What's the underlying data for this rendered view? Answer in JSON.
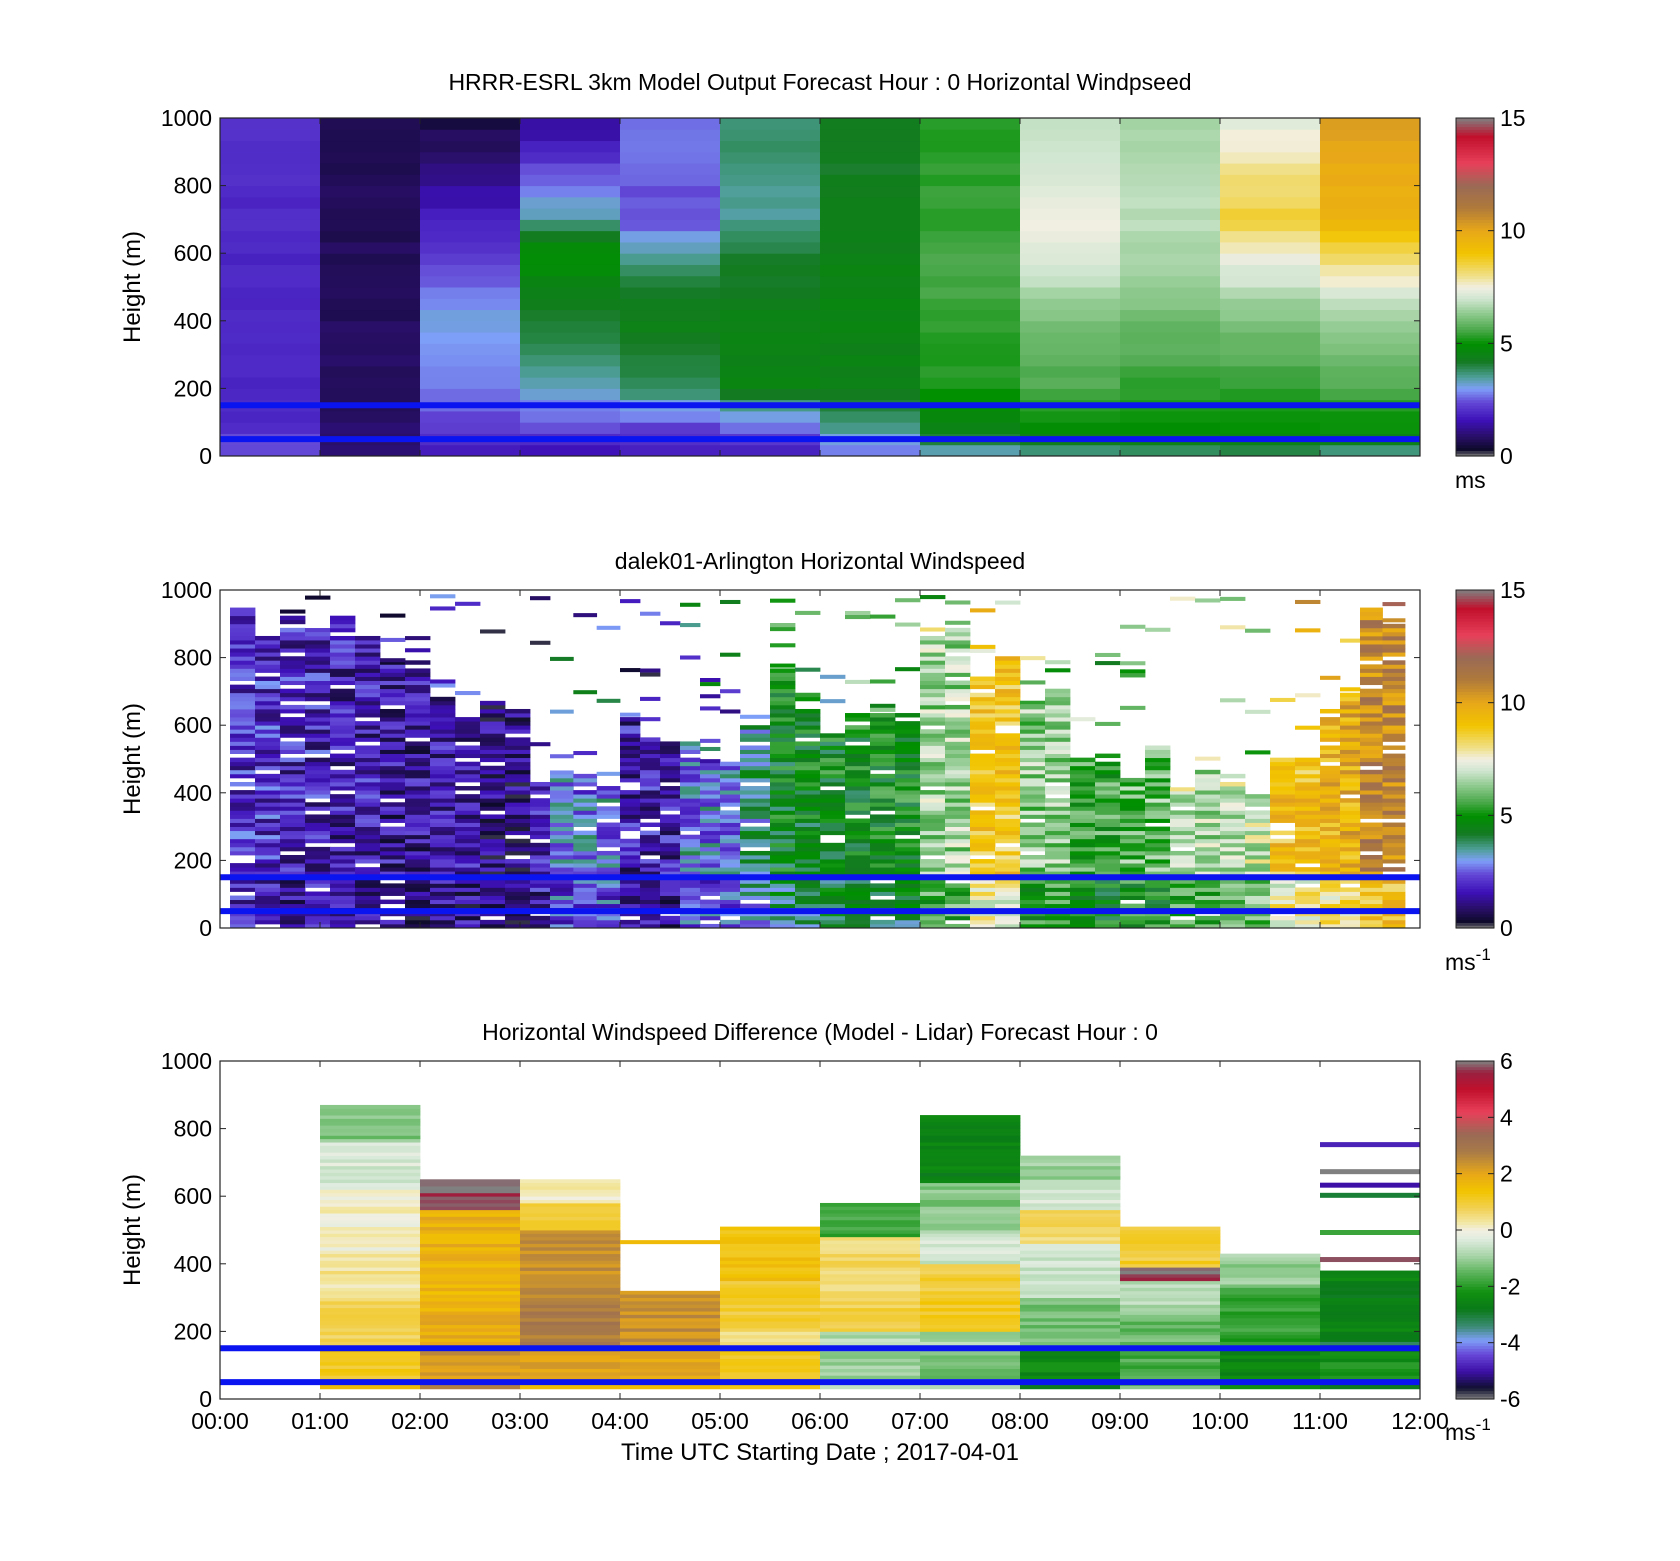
{
  "figure": {
    "xlabel": "Time UTC  Starting Date ; 2017-04-01",
    "x_ticks": [
      "00:00",
      "01:00",
      "02:00",
      "03:00",
      "04:00",
      "05:00",
      "06:00",
      "07:00",
      "08:00",
      "09:00",
      "10:00",
      "11:00",
      "12:00"
    ],
    "y_ticks": [
      "0",
      "200",
      "400",
      "600",
      "800",
      "1000"
    ],
    "ylabel": "Height (m)"
  },
  "chart_data": [
    {
      "type": "heatmap",
      "title": "HRRR-ESRL 3km Model Output   Forecast Hour : 0 Horizontal Windpseed",
      "xlabel": "",
      "ylabel": "Height (m)",
      "xlim": [
        0,
        12
      ],
      "ylim": [
        0,
        1000
      ],
      "colorbar": {
        "ticks": [
          "0",
          "5",
          "10",
          "15"
        ],
        "range": [
          0,
          15
        ],
        "unit": "ms",
        "unit_sup": ""
      },
      "reference_lines_m": [
        50,
        150
      ],
      "hour_columns": [
        [
          [
            30,
            2.5
          ],
          [
            60,
            2.2
          ],
          [
            90,
            2.0
          ],
          [
            200,
            1.9
          ],
          [
            1000,
            2.0
          ]
        ],
        [
          [
            30,
            1.0
          ],
          [
            60,
            0.9
          ],
          [
            200,
            0.8
          ],
          [
            1000,
            0.7
          ]
        ],
        [
          [
            30,
            1.8
          ],
          [
            60,
            2.1
          ],
          [
            160,
            2.6
          ],
          [
            400,
            3.1
          ],
          [
            600,
            2.2
          ],
          [
            1000,
            0.5
          ]
        ],
        [
          [
            30,
            1.6
          ],
          [
            60,
            2.3
          ],
          [
            200,
            3.2
          ],
          [
            400,
            4.2
          ],
          [
            600,
            5.0
          ],
          [
            700,
            3.5
          ],
          [
            1000,
            1.2
          ]
        ],
        [
          [
            30,
            1.8
          ],
          [
            60,
            2.0
          ],
          [
            200,
            3.8
          ],
          [
            400,
            4.5
          ],
          [
            600,
            3.6
          ],
          [
            700,
            2.4
          ],
          [
            1000,
            2.7
          ]
        ],
        [
          [
            30,
            1.9
          ],
          [
            60,
            2.2
          ],
          [
            200,
            4.5
          ],
          [
            400,
            4.5
          ],
          [
            600,
            4.0
          ],
          [
            700,
            3.5
          ],
          [
            1000,
            3.8
          ]
        ],
        [
          [
            30,
            2.8
          ],
          [
            60,
            3.4
          ],
          [
            200,
            4.4
          ],
          [
            400,
            4.6
          ],
          [
            600,
            4.5
          ],
          [
            700,
            4.3
          ],
          [
            1000,
            4.2
          ]
        ],
        [
          [
            30,
            3.5
          ],
          [
            60,
            4.5
          ],
          [
            200,
            5.2
          ],
          [
            400,
            5.4
          ],
          [
            600,
            5.6
          ],
          [
            700,
            5.4
          ],
          [
            1000,
            5.3
          ]
        ],
        [
          [
            30,
            3.8
          ],
          [
            60,
            4.8
          ],
          [
            200,
            5.6
          ],
          [
            400,
            6.2
          ],
          [
            600,
            7.2
          ],
          [
            700,
            7.4
          ],
          [
            1000,
            6.8
          ]
        ],
        [
          [
            30,
            3.8
          ],
          [
            60,
            4.8
          ],
          [
            200,
            5.3
          ],
          [
            400,
            6.0
          ],
          [
            600,
            6.6
          ],
          [
            700,
            6.8
          ],
          [
            1000,
            6.5
          ]
        ],
        [
          [
            30,
            3.9
          ],
          [
            60,
            4.9
          ],
          [
            200,
            5.4
          ],
          [
            400,
            6.1
          ],
          [
            600,
            7.6
          ],
          [
            700,
            8.6
          ],
          [
            1000,
            7.3
          ]
        ],
        [
          [
            30,
            3.6
          ],
          [
            60,
            4.9
          ],
          [
            200,
            5.6
          ],
          [
            400,
            6.4
          ],
          [
            600,
            8.4
          ],
          [
            700,
            9.6
          ],
          [
            1000,
            10.2
          ]
        ]
      ]
    },
    {
      "type": "heatmap",
      "title": "dalek01-Arlington  Horizontal Windspeed",
      "xlabel": "",
      "ylabel": "Height (m)",
      "xlim": [
        0,
        12
      ],
      "ylim": [
        0,
        1000
      ],
      "colorbar": {
        "ticks": [
          "0",
          "5",
          "10",
          "15"
        ],
        "range": [
          0,
          15
        ],
        "unit": "ms",
        "unit_sup": "-1"
      },
      "reference_lines_m": [
        50,
        150
      ],
      "segments": [
        {
          "t0": 0.1,
          "t1": 0.6,
          "ws": 2.0,
          "top": 900
        },
        {
          "t0": 0.6,
          "t1": 1.1,
          "ws": 1.8,
          "top": 860
        },
        {
          "t0": 1.1,
          "t1": 1.6,
          "ws": 1.6,
          "top": 880
        },
        {
          "t0": 1.6,
          "t1": 2.1,
          "ws": 1.4,
          "top": 820
        },
        {
          "t0": 2.1,
          "t1": 2.6,
          "ws": 1.5,
          "top": 660
        },
        {
          "t0": 2.6,
          "t1": 3.1,
          "ws": 1.1,
          "top": 640
        },
        {
          "t0": 3.1,
          "t1": 3.3,
          "ws": 1.8,
          "top": 420
        },
        {
          "t0": 3.3,
          "t1": 4.0,
          "ws": 2.8,
          "top": 430
        },
        {
          "t0": 4.0,
          "t1": 4.6,
          "ws": 1.6,
          "top": 560
        },
        {
          "t0": 4.6,
          "t1": 5.2,
          "ws": 2.9,
          "top": 520
        },
        {
          "t0": 5.2,
          "t1": 5.5,
          "ws": 3.6,
          "top": 560
        },
        {
          "t0": 5.5,
          "t1": 6.0,
          "ws": 4.6,
          "top": 720
        },
        {
          "t0": 6.0,
          "t1": 6.5,
          "ws": 4.8,
          "top": 600
        },
        {
          "t0": 6.5,
          "t1": 7.0,
          "ws": 4.9,
          "top": 660
        },
        {
          "t0": 7.0,
          "t1": 7.5,
          "ws": 6.5,
          "top": 860
        },
        {
          "t0": 7.5,
          "t1": 8.0,
          "ws": 8.9,
          "top": 800
        },
        {
          "t0": 8.0,
          "t1": 8.5,
          "ws": 6.3,
          "top": 660
        },
        {
          "t0": 8.5,
          "t1": 9.0,
          "ws": 5.4,
          "top": 520
        },
        {
          "t0": 9.0,
          "t1": 9.5,
          "ws": 5.9,
          "top": 500
        },
        {
          "t0": 9.5,
          "t1": 10.0,
          "ws": 6.6,
          "top": 460
        },
        {
          "t0": 10.0,
          "t1": 10.5,
          "ws": 7.0,
          "top": 430
        },
        {
          "t0": 10.5,
          "t1": 11.0,
          "ws": 9.1,
          "top": 520
        },
        {
          "t0": 11.0,
          "t1": 11.4,
          "ws": 9.6,
          "top": 640
        },
        {
          "t0": 11.4,
          "t1": 11.85,
          "ws": 10.8,
          "top": 880
        }
      ]
    },
    {
      "type": "heatmap",
      "title": "Horizontal Windspeed Difference (Model - Lidar) Forecast Hour : 0",
      "xlabel": "Time UTC  Starting Date ; 2017-04-01",
      "ylabel": "Height (m)",
      "xlim": [
        0,
        12
      ],
      "ylim": [
        0,
        1000
      ],
      "colorbar": {
        "ticks": [
          "6",
          "4",
          "2",
          "0",
          "-2",
          "-4",
          "-6"
        ],
        "range": [
          -6,
          6
        ],
        "unit": "ms",
        "unit_sup": "-1"
      },
      "reference_lines_m": [
        50,
        150
      ],
      "hour_blocks": [
        {
          "h": 1,
          "top": 870,
          "bands": [
            [
              870,
              -1.2
            ],
            [
              760,
              -0.4
            ],
            [
              620,
              0.1
            ],
            [
              430,
              0.4
            ],
            [
              300,
              0.8
            ],
            [
              150,
              1.2
            ],
            [
              60,
              1.6
            ]
          ]
        },
        {
          "h": 2,
          "top": 650,
          "bands": [
            [
              650,
              5.8
            ],
            [
              560,
              1.8
            ],
            [
              400,
              1.7
            ],
            [
              250,
              1.9
            ],
            [
              150,
              2.3
            ],
            [
              60,
              2.4
            ]
          ]
        },
        {
          "h": 3,
          "top": 650,
          "bands": [
            [
              650,
              0.2
            ],
            [
              580,
              1.0
            ],
            [
              500,
              2.4
            ],
            [
              300,
              2.8
            ],
            [
              150,
              2.2
            ],
            [
              60,
              1.6
            ]
          ]
        },
        {
          "h": 4,
          "top": 320,
          "bands": [
            [
              320,
              2.4
            ],
            [
              150,
              2.0
            ],
            [
              60,
              1.5
            ]
          ]
        },
        {
          "h": 5,
          "top": 510,
          "bands": [
            [
              510,
              1.4
            ],
            [
              350,
              1.0
            ],
            [
              200,
              0.4
            ],
            [
              150,
              1.2
            ],
            [
              60,
              1.5
            ]
          ]
        },
        {
          "h": 6,
          "top": 580,
          "bands": [
            [
              580,
              -1.8
            ],
            [
              480,
              0.6
            ],
            [
              300,
              0.9
            ],
            [
              200,
              -0.8
            ],
            [
              150,
              -1.0
            ],
            [
              60,
              -0.7
            ]
          ]
        },
        {
          "h": 7,
          "top": 840,
          "bands": [
            [
              840,
              -2.6
            ],
            [
              640,
              -1.2
            ],
            [
              500,
              -0.5
            ],
            [
              400,
              0.9
            ],
            [
              300,
              1.2
            ],
            [
              200,
              -0.9
            ],
            [
              150,
              -1.3
            ],
            [
              60,
              -1.0
            ]
          ]
        },
        {
          "h": 8,
          "top": 720,
          "bands": [
            [
              720,
              -1.0
            ],
            [
              650,
              -0.4
            ],
            [
              560,
              0.6
            ],
            [
              460,
              -0.6
            ],
            [
              300,
              -1.3
            ],
            [
              150,
              -2.4
            ],
            [
              60,
              -2.8
            ]
          ]
        },
        {
          "h": 9,
          "top": 510,
          "bands": [
            [
              510,
              1.0
            ],
            [
              390,
              5.8
            ],
            [
              350,
              -0.8
            ],
            [
              250,
              -1.4
            ],
            [
              150,
              -1.7
            ],
            [
              60,
              -1.4
            ]
          ]
        },
        {
          "h": 10,
          "top": 430,
          "bands": [
            [
              430,
              -1.0
            ],
            [
              330,
              -1.9
            ],
            [
              150,
              -2.5
            ],
            [
              60,
              -2.3
            ]
          ]
        },
        {
          "h": 11,
          "top": 380,
          "bands": [
            [
              380,
              -2.6
            ],
            [
              200,
              -3.0
            ],
            [
              150,
              -2.2
            ],
            [
              60,
              -2.6
            ]
          ]
        }
      ],
      "hour11_upper_lines": [
        [
          760,
          -4.8
        ],
        [
          680,
          -6.0
        ],
        [
          640,
          -5.0
        ],
        [
          610,
          -3.0
        ],
        [
          500,
          -1.8
        ],
        [
          420,
          5.8
        ]
      ]
    }
  ]
}
